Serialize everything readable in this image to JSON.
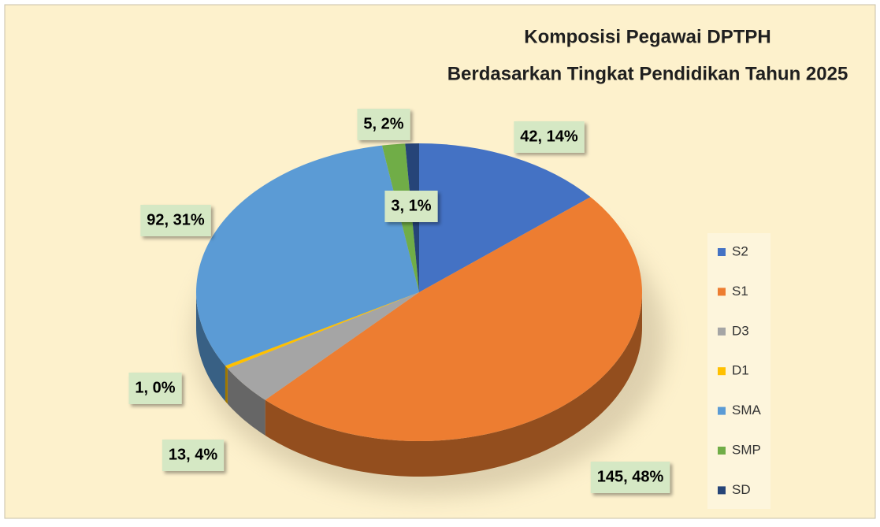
{
  "chart_data": {
    "type": "pie",
    "title": "Komposisi Pegawai DPTPH",
    "subtitle": "Berdasarkan Tingkat Pendidikan Tahun 2025",
    "categories": [
      "S2",
      "S1",
      "D3",
      "D1",
      "SMA",
      "SMP",
      "SD"
    ],
    "values": [
      42,
      145,
      13,
      1,
      92,
      5,
      3
    ],
    "value_labels": [
      "42, 14%",
      "145, 48%",
      "13, 4%",
      "1, 0%",
      "92, 31%",
      "5, 2%",
      "3, 1%"
    ],
    "colors": [
      "#4472c4",
      "#ed7d31",
      "#a5a5a5",
      "#ffc000",
      "#5b9bd5",
      "#70ad47",
      "#264478"
    ],
    "legend": "right"
  }
}
